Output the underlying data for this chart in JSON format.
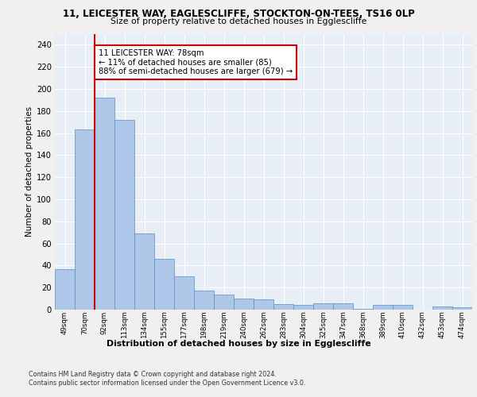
{
  "title_line1": "11, LEICESTER WAY, EAGLESCLIFFE, STOCKTON-ON-TEES, TS16 0LP",
  "title_line2": "Size of property relative to detached houses in Egglescliffe",
  "xlabel": "Distribution of detached houses by size in Egglescliffe",
  "ylabel": "Number of detached properties",
  "categories": [
    "49sqm",
    "70sqm",
    "92sqm",
    "113sqm",
    "134sqm",
    "155sqm",
    "177sqm",
    "198sqm",
    "219sqm",
    "240sqm",
    "262sqm",
    "283sqm",
    "304sqm",
    "325sqm",
    "347sqm",
    "368sqm",
    "389sqm",
    "410sqm",
    "432sqm",
    "453sqm",
    "474sqm"
  ],
  "values": [
    37,
    163,
    192,
    172,
    69,
    46,
    30,
    17,
    14,
    10,
    9,
    5,
    4,
    6,
    6,
    1,
    4,
    4,
    0,
    3,
    2
  ],
  "bar_color": "#aec6e8",
  "bar_edge_color": "#5a8fc0",
  "reference_line_color": "#cc0000",
  "annotation_text": "11 LEICESTER WAY: 78sqm\n← 11% of detached houses are smaller (85)\n88% of semi-detached houses are larger (679) →",
  "annotation_box_color": "#ffffff",
  "annotation_border_color": "#cc0000",
  "ylim": [
    0,
    250
  ],
  "yticks": [
    0,
    20,
    40,
    60,
    80,
    100,
    120,
    140,
    160,
    180,
    200,
    220,
    240
  ],
  "background_color": "#e8eef5",
  "grid_color": "#ffffff",
  "footer_text": "Contains HM Land Registry data © Crown copyright and database right 2024.\nContains public sector information licensed under the Open Government Licence v3.0."
}
